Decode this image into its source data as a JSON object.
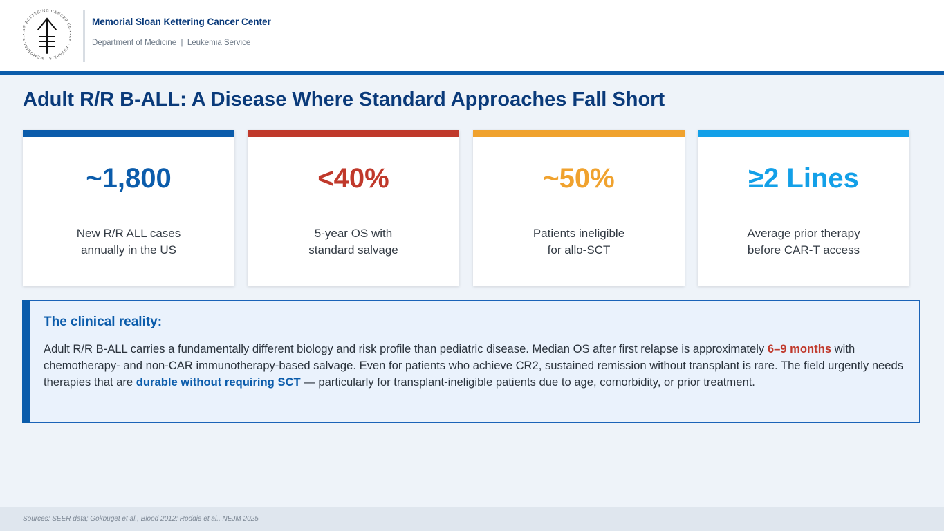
{
  "header": {
    "org_name": "Memorial Sloan Kettering Cancer Center",
    "department": "Department of Medicine  |  Leukemia Service",
    "logo": {
      "seal_text": "MEMORIAL SLOAN KETTERING CANCER CENTER · ESTABLISHED 1884",
      "icon": "msk-seal-icon"
    }
  },
  "title": "Adult R/R B-ALL: A Disease Where Standard Approaches Fall Short",
  "stats": [
    {
      "value": "~1,800",
      "label_line1": "New R/R ALL cases",
      "label_line2": "annually in the US",
      "color": "#0b5cab"
    },
    {
      "value": "<40%",
      "label_line1": "5-year OS with",
      "label_line2": "standard salvage",
      "color": "#c0392b"
    },
    {
      "value": "~50%",
      "label_line1": "Patients ineligible",
      "label_line2": "for allo-SCT",
      "color": "#f0a22e"
    },
    {
      "value": "≥2 Lines",
      "label_line1": "Average prior therapy",
      "label_line2": "before CAR-T access",
      "color": "#13a0e8"
    }
  ],
  "reality": {
    "heading": "The clinical reality:",
    "text_1": "Adult R/R B-ALL carries a fundamentally different biology and risk profile than pediatric disease. Median OS after first relapse is approximately ",
    "highlight_1": "6–9 months",
    "text_2": " with chemotherapy- and non-CAR immunotherapy-based salvage. Even for patients who achieve CR2, sustained remission without transplant is rare. The field urgently needs therapies that are ",
    "highlight_2": "durable without requiring SCT",
    "text_3": " — particularly for transplant-ineligible patients due to age, comorbidity, or prior treatment."
  },
  "footer": {
    "sources": "Sources: SEER data; Gökbuget et al., Blood 2012; Roddie et al., NEJM 2025"
  }
}
